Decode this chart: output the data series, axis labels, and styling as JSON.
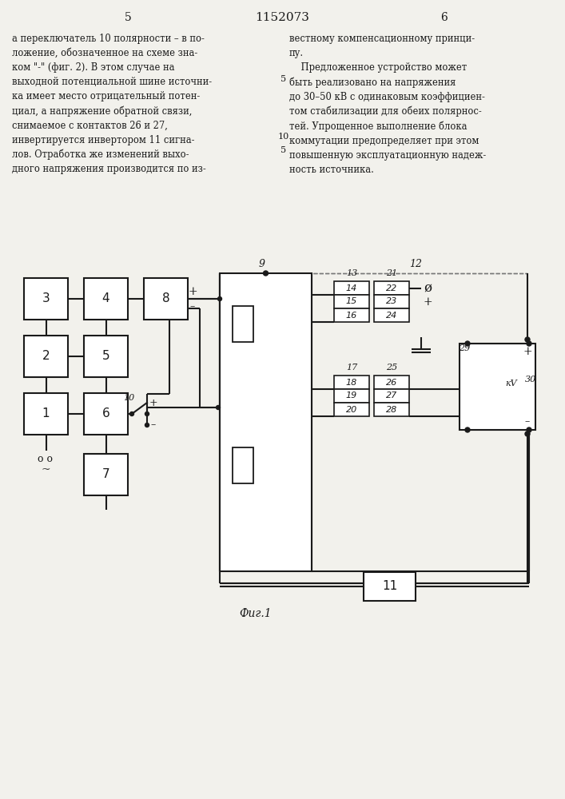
{
  "bg_color": "#f2f1ec",
  "lc": "#1a1a1a",
  "title": "1152073",
  "page_left": "5",
  "page_right": "6",
  "fig_label": "Фиг.1",
  "text_left": "а переключатель 10 полярности – в по-\nложение, обозначенное на схеме зна-\nком \"-\" (фиг. 2). В этом случае на\nвыходной потенциальной шине источни-\nка имеет место отрицательный потен-\nциал, а напряжение обратной связи,\nснимаемое с контактов 26 и 27,\nинвертируется инвертором 11 сигна-\nлов. Отработка же изменений выхо-\nдного напряжения производится по из-",
  "text_right": "вестному компенсационному принци-\nпу.\n    Предложенное устройство может\nбыть реализовано на напряжения\nдо 30–50 кВ с одинаковым коэффициен-\nтом стабилизации для обеих полярнос-\nтей. Упрощенное выполнение блока\nкоммутации предопределяет при этом\nповышенную эксплуатационную надеж-\nность источника.",
  "num5_marker": "5"
}
